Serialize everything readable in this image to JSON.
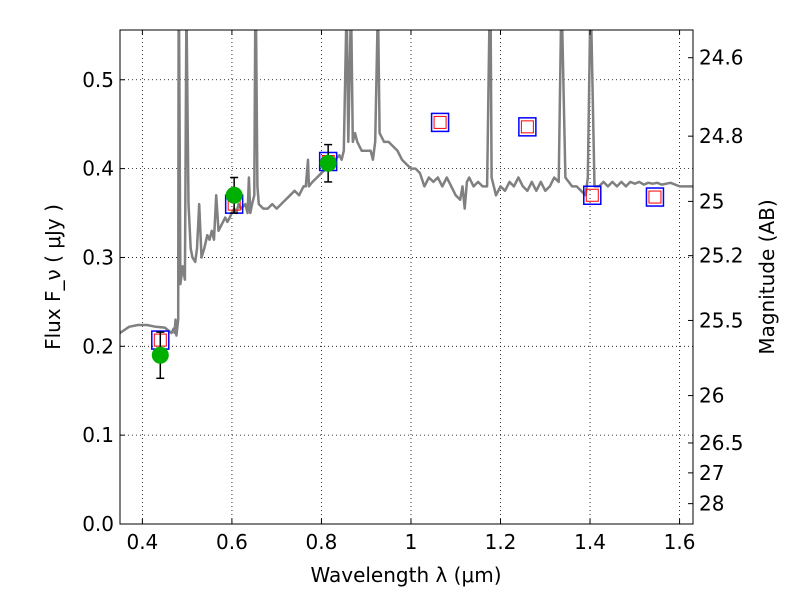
{
  "chart_data": {
    "type": "scatter",
    "title": "",
    "xlabel": "Wavelength  λ (μm)",
    "ylabel": "Flux  F_ν  ( μJy )",
    "ylabel_right": "Magnitude (AB)",
    "xlim": [
      0.35,
      1.63
    ],
    "ylim": [
      0.0,
      0.556
    ],
    "grid": true,
    "x_ticks": [
      0.4,
      0.6,
      0.8,
      1.0,
      1.2,
      1.4,
      1.6
    ],
    "x_tick_labels": [
      "0.4",
      "0.6",
      "0.8",
      "1",
      "1.2",
      "1.4",
      "1.6"
    ],
    "y_ticks": [
      0.0,
      0.1,
      0.2,
      0.3,
      0.4,
      0.5
    ],
    "y_tick_labels": [
      "0.0",
      "0.1",
      "0.2",
      "0.3",
      "0.4",
      "0.5"
    ],
    "right_ticks": [
      24.6,
      24.8,
      25.0,
      25.2,
      25.5,
      26.0,
      26.5,
      27.0,
      28.0
    ],
    "right_tick_labels": [
      "24.6",
      "24.8",
      "25",
      "25.2",
      "25.5",
      "26",
      "26.5",
      "27",
      "28"
    ],
    "colors": {
      "spectrum": "#808080",
      "observed": "#00b000",
      "errorbar": "#000000",
      "model_outer": "#0000ff",
      "model_inner": "#ff0000"
    },
    "series": [
      {
        "kind": "line",
        "points": [
          [
            0.35,
            0.215
          ],
          [
            0.37,
            0.222
          ],
          [
            0.39,
            0.224
          ],
          [
            0.41,
            0.224
          ],
          [
            0.43,
            0.222
          ],
          [
            0.45,
            0.221
          ],
          [
            0.465,
            0.215
          ],
          [
            0.47,
            0.22
          ],
          [
            0.472,
            0.215
          ],
          [
            0.474,
            0.23
          ],
          [
            0.476,
            0.212
          ],
          [
            0.48,
            0.23
          ],
          [
            0.481,
            0.556
          ],
          [
            0.482,
            0.556
          ],
          [
            0.485,
            0.27
          ],
          [
            0.49,
            0.29
          ],
          [
            0.495,
            0.275
          ],
          [
            0.498,
            0.556
          ],
          [
            0.499,
            0.556
          ],
          [
            0.503,
            0.36
          ],
          [
            0.508,
            0.31
          ],
          [
            0.512,
            0.3
          ],
          [
            0.518,
            0.295
          ],
          [
            0.522,
            0.31
          ],
          [
            0.527,
            0.36
          ],
          [
            0.532,
            0.3
          ],
          [
            0.538,
            0.31
          ],
          [
            0.545,
            0.325
          ],
          [
            0.55,
            0.32
          ],
          [
            0.555,
            0.33
          ],
          [
            0.56,
            0.32
          ],
          [
            0.565,
            0.37
          ],
          [
            0.57,
            0.33
          ],
          [
            0.575,
            0.335
          ],
          [
            0.58,
            0.34
          ],
          [
            0.585,
            0.345
          ],
          [
            0.59,
            0.34
          ],
          [
            0.595,
            0.345
          ],
          [
            0.6,
            0.35
          ],
          [
            0.605,
            0.355
          ],
          [
            0.61,
            0.35
          ],
          [
            0.615,
            0.36
          ],
          [
            0.62,
            0.355
          ],
          [
            0.63,
            0.36
          ],
          [
            0.635,
            0.35
          ],
          [
            0.638,
            0.39
          ],
          [
            0.641,
            0.35
          ],
          [
            0.645,
            0.36
          ],
          [
            0.65,
            0.37
          ],
          [
            0.652,
            0.556
          ],
          [
            0.654,
            0.556
          ],
          [
            0.657,
            0.38
          ],
          [
            0.66,
            0.36
          ],
          [
            0.67,
            0.355
          ],
          [
            0.68,
            0.355
          ],
          [
            0.69,
            0.36
          ],
          [
            0.7,
            0.355
          ],
          [
            0.71,
            0.36
          ],
          [
            0.72,
            0.365
          ],
          [
            0.73,
            0.37
          ],
          [
            0.74,
            0.375
          ],
          [
            0.75,
            0.37
          ],
          [
            0.76,
            0.38
          ],
          [
            0.765,
            0.38
          ],
          [
            0.77,
            0.41
          ],
          [
            0.772,
            0.38
          ],
          [
            0.78,
            0.385
          ],
          [
            0.79,
            0.39
          ],
          [
            0.8,
            0.395
          ],
          [
            0.81,
            0.4
          ],
          [
            0.82,
            0.405
          ],
          [
            0.83,
            0.41
          ],
          [
            0.84,
            0.415
          ],
          [
            0.845,
            0.41
          ],
          [
            0.85,
            0.42
          ],
          [
            0.855,
            0.556
          ],
          [
            0.857,
            0.556
          ],
          [
            0.86,
            0.43
          ],
          [
            0.865,
            0.556
          ],
          [
            0.867,
            0.556
          ],
          [
            0.87,
            0.43
          ],
          [
            0.875,
            0.44
          ],
          [
            0.88,
            0.43
          ],
          [
            0.89,
            0.42
          ],
          [
            0.9,
            0.42
          ],
          [
            0.91,
            0.42
          ],
          [
            0.915,
            0.41
          ],
          [
            0.92,
            0.43
          ],
          [
            0.925,
            0.556
          ],
          [
            0.927,
            0.556
          ],
          [
            0.93,
            0.44
          ],
          [
            0.94,
            0.43
          ],
          [
            0.95,
            0.43
          ],
          [
            0.96,
            0.425
          ],
          [
            0.97,
            0.42
          ],
          [
            0.98,
            0.41
          ],
          [
            0.99,
            0.405
          ],
          [
            1.0,
            0.4
          ],
          [
            1.01,
            0.4
          ],
          [
            1.02,
            0.395
          ],
          [
            1.03,
            0.38
          ],
          [
            1.04,
            0.39
          ],
          [
            1.05,
            0.385
          ],
          [
            1.06,
            0.39
          ],
          [
            1.07,
            0.38
          ],
          [
            1.08,
            0.39
          ],
          [
            1.09,
            0.38
          ],
          [
            1.1,
            0.37
          ],
          [
            1.11,
            0.365
          ],
          [
            1.115,
            0.38
          ],
          [
            1.12,
            0.355
          ],
          [
            1.125,
            0.385
          ],
          [
            1.13,
            0.39
          ],
          [
            1.14,
            0.38
          ],
          [
            1.15,
            0.385
          ],
          [
            1.16,
            0.38
          ],
          [
            1.17,
            0.38
          ],
          [
            1.175,
            0.556
          ],
          [
            1.178,
            0.556
          ],
          [
            1.18,
            0.39
          ],
          [
            1.19,
            0.37
          ],
          [
            1.2,
            0.38
          ],
          [
            1.21,
            0.375
          ],
          [
            1.22,
            0.385
          ],
          [
            1.23,
            0.38
          ],
          [
            1.24,
            0.39
          ],
          [
            1.25,
            0.38
          ],
          [
            1.26,
            0.375
          ],
          [
            1.27,
            0.385
          ],
          [
            1.28,
            0.375
          ],
          [
            1.29,
            0.385
          ],
          [
            1.3,
            0.375
          ],
          [
            1.31,
            0.38
          ],
          [
            1.32,
            0.39
          ],
          [
            1.33,
            0.385
          ],
          [
            1.335,
            0.556
          ],
          [
            1.338,
            0.556
          ],
          [
            1.345,
            0.39
          ],
          [
            1.36,
            0.38
          ],
          [
            1.37,
            0.38
          ],
          [
            1.38,
            0.375
          ],
          [
            1.39,
            0.37
          ],
          [
            1.395,
            0.39
          ],
          [
            1.4,
            0.556
          ],
          [
            1.403,
            0.556
          ],
          [
            1.41,
            0.38
          ],
          [
            1.42,
            0.38
          ],
          [
            1.43,
            0.385
          ],
          [
            1.44,
            0.38
          ],
          [
            1.45,
            0.385
          ],
          [
            1.46,
            0.38
          ],
          [
            1.47,
            0.385
          ],
          [
            1.48,
            0.38
          ],
          [
            1.49,
            0.385
          ],
          [
            1.5,
            0.383
          ],
          [
            1.51,
            0.385
          ],
          [
            1.52,
            0.382
          ],
          [
            1.53,
            0.384
          ],
          [
            1.54,
            0.383
          ],
          [
            1.55,
            0.384
          ],
          [
            1.56,
            0.382
          ],
          [
            1.58,
            0.384
          ],
          [
            1.6,
            0.38
          ],
          [
            1.63,
            0.38
          ]
        ]
      },
      {
        "kind": "squares",
        "points": [
          [
            0.44,
            0.207
          ],
          [
            0.605,
            0.36
          ],
          [
            0.815,
            0.408
          ],
          [
            1.065,
            0.452
          ],
          [
            1.26,
            0.447
          ],
          [
            1.405,
            0.37
          ],
          [
            1.545,
            0.368
          ]
        ]
      },
      {
        "kind": "errorbars",
        "points": [
          {
            "x": 0.44,
            "y": 0.19,
            "yerr": 0.026
          },
          {
            "x": 0.605,
            "y": 0.37,
            "yerr": 0.02
          },
          {
            "x": 0.815,
            "y": 0.406,
            "yerr": 0.021
          }
        ]
      }
    ]
  }
}
